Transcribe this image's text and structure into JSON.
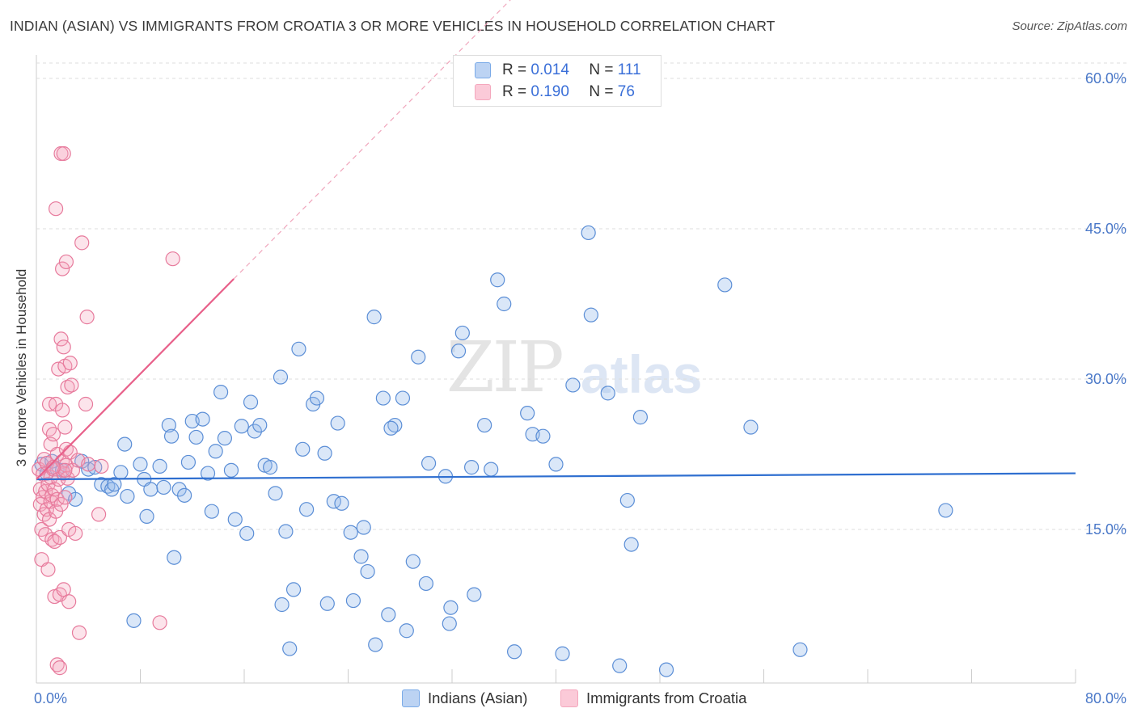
{
  "title": "INDIAN (ASIAN) VS IMMIGRANTS FROM CROATIA 3 OR MORE VEHICLES IN HOUSEHOLD CORRELATION CHART",
  "source": "Source: ZipAtlas.com",
  "watermark": {
    "zip": "ZIP",
    "atlas": "atlas"
  },
  "legend_top": {
    "rows": [
      {
        "r_label": "R = ",
        "r_value": "0.014",
        "n_label": "N = ",
        "n_value": "111"
      },
      {
        "r_label": "R = ",
        "r_value": "0.190",
        "n_label": "N = ",
        "n_value": "76"
      }
    ]
  },
  "chart_data": {
    "type": "scatter",
    "title": "INDIAN (ASIAN) VS IMMIGRANTS FROM CROATIA 3 OR MORE VEHICLES IN HOUSEHOLD CORRELATION CHART",
    "xlabel": "",
    "ylabel": "3 or more Vehicles in Household",
    "xlim": [
      0,
      80
    ],
    "ylim": [
      0,
      62
    ],
    "x_tick_labels": [
      "0.0%",
      "80.0%"
    ],
    "y_ticks": [
      15,
      30,
      45,
      60
    ],
    "y_tick_labels": [
      "15.0%",
      "30.0%",
      "45.0%",
      "60.0%"
    ],
    "grid": true,
    "legend_position": "bottom",
    "series": [
      {
        "name": "Indians (Asian)",
        "color": "#7aaae8",
        "stroke": "#5b8ed6",
        "r": 0.014,
        "n": 111,
        "trend": {
          "x": [
            0,
            80
          ],
          "y": [
            20.0,
            20.6
          ],
          "color": "#2f6fd0"
        },
        "points": [
          [
            0.4,
            21.5
          ],
          [
            0.8,
            20.6
          ],
          [
            1.2,
            21.8
          ],
          [
            1.6,
            21.0
          ],
          [
            2.0,
            20.9
          ],
          [
            2.5,
            18.6
          ],
          [
            3.0,
            18.0
          ],
          [
            3.5,
            21.8
          ],
          [
            4.0,
            21.0
          ],
          [
            4.5,
            21.2
          ],
          [
            5.0,
            19.5
          ],
          [
            5.5,
            19.3
          ],
          [
            5.8,
            19.0
          ],
          [
            6.0,
            19.5
          ],
          [
            6.5,
            20.7
          ],
          [
            6.8,
            23.5
          ],
          [
            7.0,
            18.3
          ],
          [
            7.5,
            5.9
          ],
          [
            8.0,
            21.5
          ],
          [
            8.3,
            20.0
          ],
          [
            8.5,
            16.3
          ],
          [
            8.8,
            19.0
          ],
          [
            9.5,
            21.3
          ],
          [
            9.8,
            19.2
          ],
          [
            10.2,
            25.4
          ],
          [
            10.4,
            24.3
          ],
          [
            10.6,
            12.2
          ],
          [
            11.0,
            19.0
          ],
          [
            11.4,
            18.4
          ],
          [
            11.7,
            21.7
          ],
          [
            12.0,
            25.8
          ],
          [
            12.3,
            24.2
          ],
          [
            12.8,
            26.0
          ],
          [
            13.2,
            20.6
          ],
          [
            13.5,
            16.8
          ],
          [
            13.8,
            22.8
          ],
          [
            14.2,
            28.7
          ],
          [
            14.5,
            24.1
          ],
          [
            15.0,
            20.9
          ],
          [
            15.3,
            16.0
          ],
          [
            15.8,
            25.3
          ],
          [
            16.2,
            14.6
          ],
          [
            16.5,
            27.7
          ],
          [
            16.8,
            24.8
          ],
          [
            17.2,
            25.4
          ],
          [
            17.6,
            21.4
          ],
          [
            18.0,
            21.2
          ],
          [
            18.4,
            18.6
          ],
          [
            18.8,
            30.2
          ],
          [
            19.2,
            14.8
          ],
          [
            19.8,
            9.0
          ],
          [
            19.5,
            3.1
          ],
          [
            18.9,
            7.5
          ],
          [
            20.2,
            33.0
          ],
          [
            20.5,
            23.0
          ],
          [
            20.8,
            17.0
          ],
          [
            21.3,
            27.5
          ],
          [
            21.6,
            28.1
          ],
          [
            22.4,
            7.6
          ],
          [
            22.2,
            22.6
          ],
          [
            22.9,
            17.8
          ],
          [
            23.5,
            17.6
          ],
          [
            23.2,
            25.6
          ],
          [
            24.2,
            14.7
          ],
          [
            24.4,
            7.9
          ],
          [
            25.2,
            15.2
          ],
          [
            25.0,
            12.3
          ],
          [
            25.5,
            10.8
          ],
          [
            26.0,
            36.2
          ],
          [
            26.1,
            3.5
          ],
          [
            26.7,
            28.1
          ],
          [
            27.1,
            6.5
          ],
          [
            27.6,
            25.4
          ],
          [
            27.3,
            25.1
          ],
          [
            28.2,
            28.1
          ],
          [
            28.5,
            4.9
          ],
          [
            29.0,
            11.8
          ],
          [
            29.4,
            32.2
          ],
          [
            30.0,
            9.6
          ],
          [
            30.2,
            21.6
          ],
          [
            31.5,
            20.3
          ],
          [
            31.8,
            5.6
          ],
          [
            31.9,
            7.2
          ],
          [
            32.5,
            32.8
          ],
          [
            32.8,
            34.6
          ],
          [
            33.5,
            21.2
          ],
          [
            33.7,
            8.5
          ],
          [
            34.5,
            25.4
          ],
          [
            35.0,
            21.0
          ],
          [
            35.5,
            39.9
          ],
          [
            36.0,
            37.5
          ],
          [
            36.8,
            2.8
          ],
          [
            37.8,
            26.6
          ],
          [
            38.2,
            24.5
          ],
          [
            39.0,
            24.3
          ],
          [
            40.0,
            21.5
          ],
          [
            40.5,
            2.6
          ],
          [
            41.3,
            29.4
          ],
          [
            42.5,
            44.6
          ],
          [
            42.7,
            36.4
          ],
          [
            44.0,
            28.6
          ],
          [
            44.9,
            1.4
          ],
          [
            45.5,
            17.9
          ],
          [
            45.8,
            13.5
          ],
          [
            46.5,
            26.2
          ],
          [
            48.5,
            1.0
          ],
          [
            53.0,
            39.4
          ],
          [
            55.0,
            25.2
          ],
          [
            58.8,
            3.0
          ],
          [
            70.0,
            16.9
          ]
        ]
      },
      {
        "name": "Immigrants from Croatia",
        "color": "#f4a7bd",
        "stroke": "#e77a9c",
        "r": 0.19,
        "n": 76,
        "trend": {
          "x": [
            0,
            15.2
          ],
          "y": [
            20.0,
            40.0
          ],
          "color": "#e8608a"
        },
        "trend_dashed": {
          "x": [
            15.2,
            37.0
          ],
          "y": [
            40.0,
            68.5
          ],
          "color": "#f0a6bc"
        },
        "points": [
          [
            0.2,
            21.0
          ],
          [
            0.3,
            17.5
          ],
          [
            0.3,
            19.0
          ],
          [
            0.4,
            12.0
          ],
          [
            0.4,
            15.0
          ],
          [
            0.5,
            18.2
          ],
          [
            0.5,
            20.5
          ],
          [
            0.6,
            16.5
          ],
          [
            0.6,
            22.0
          ],
          [
            0.7,
            14.5
          ],
          [
            0.7,
            18.8
          ],
          [
            0.8,
            17.0
          ],
          [
            0.8,
            21.6
          ],
          [
            0.9,
            19.5
          ],
          [
            0.9,
            11.0
          ],
          [
            1.0,
            25.0
          ],
          [
            1.0,
            27.5
          ],
          [
            1.0,
            16.0
          ],
          [
            1.1,
            17.8
          ],
          [
            1.1,
            20.2
          ],
          [
            1.1,
            23.5
          ],
          [
            1.2,
            14.0
          ],
          [
            1.2,
            18.4
          ],
          [
            1.3,
            21.0
          ],
          [
            1.3,
            24.5
          ],
          [
            1.4,
            19.0
          ],
          [
            1.4,
            13.8
          ],
          [
            1.4,
            8.3
          ],
          [
            1.5,
            27.5
          ],
          [
            1.5,
            16.8
          ],
          [
            1.5,
            47.0
          ],
          [
            1.6,
            22.5
          ],
          [
            1.6,
            18.0
          ],
          [
            1.6,
            1.5
          ],
          [
            1.7,
            31.0
          ],
          [
            1.7,
            20.0
          ],
          [
            1.8,
            14.2
          ],
          [
            1.8,
            8.5
          ],
          [
            1.8,
            1.2
          ],
          [
            1.9,
            52.5
          ],
          [
            1.9,
            34.0
          ],
          [
            1.9,
            17.5
          ],
          [
            2.0,
            41.0
          ],
          [
            2.0,
            26.9
          ],
          [
            2.0,
            21.8
          ],
          [
            2.1,
            52.5
          ],
          [
            2.1,
            33.2
          ],
          [
            2.1,
            20.6
          ],
          [
            2.1,
            9.0
          ],
          [
            2.2,
            31.3
          ],
          [
            2.2,
            25.2
          ],
          [
            2.2,
            18.2
          ],
          [
            2.3,
            41.7
          ],
          [
            2.3,
            23.0
          ],
          [
            2.3,
            21.4
          ],
          [
            2.4,
            29.2
          ],
          [
            2.4,
            20.1
          ],
          [
            2.5,
            7.8
          ],
          [
            2.5,
            15.0
          ],
          [
            2.6,
            31.6
          ],
          [
            2.6,
            22.7
          ],
          [
            2.7,
            29.4
          ],
          [
            2.8,
            20.9
          ],
          [
            3.0,
            14.6
          ],
          [
            3.2,
            21.9
          ],
          [
            3.3,
            4.7
          ],
          [
            3.5,
            43.6
          ],
          [
            3.8,
            27.5
          ],
          [
            3.9,
            36.2
          ],
          [
            4.0,
            21.5
          ],
          [
            4.8,
            16.5
          ],
          [
            5.0,
            21.3
          ],
          [
            9.5,
            5.7
          ],
          [
            10.5,
            42.0
          ],
          [
            2.2,
            20.9
          ],
          [
            1.3,
            21.2
          ]
        ]
      }
    ]
  }
}
